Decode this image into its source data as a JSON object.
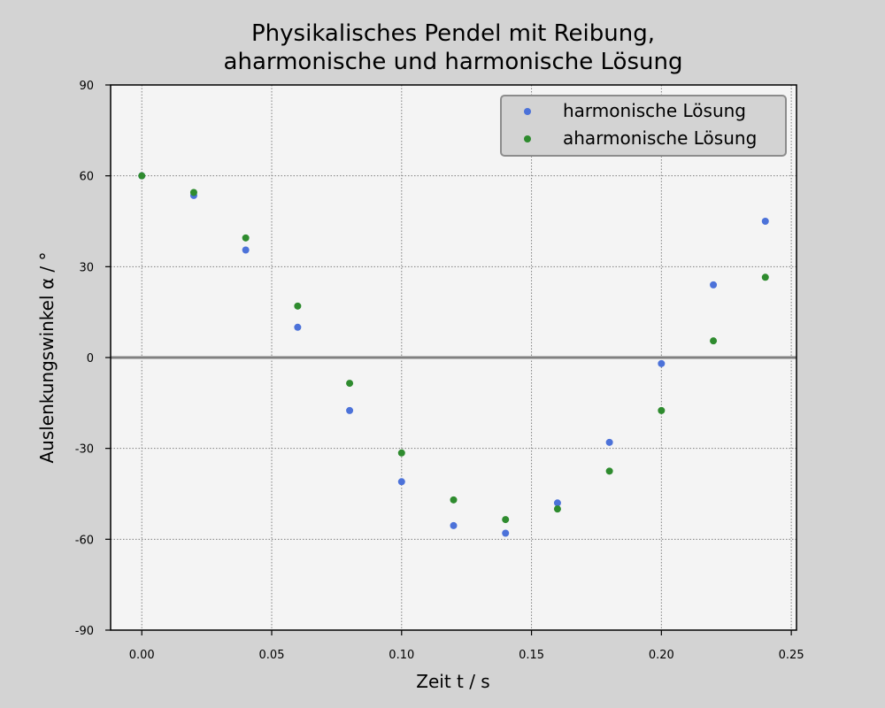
{
  "chart_data": {
    "type": "scatter",
    "title_line1": "Physikalisches Pendel mit Reibung,",
    "title_line2": "aharmonische und harmonische Lösung",
    "xlabel": "Zeit t / s",
    "ylabel": "Auslenkungswinkel α / °",
    "xlim": [
      -0.012,
      0.252
    ],
    "ylim": [
      -90,
      90
    ],
    "xticks": [
      0.0,
      0.05,
      0.1,
      0.15,
      0.2,
      0.25
    ],
    "xtick_labels": [
      "0.00",
      "0.05",
      "0.10",
      "0.15",
      "0.20",
      "0.25"
    ],
    "yticks": [
      -90,
      -60,
      -30,
      0,
      30,
      60,
      90
    ],
    "ytick_labels": [
      "-90",
      "-60",
      "-30",
      "0",
      "30",
      "60",
      "90"
    ],
    "grid": true,
    "zero_line": true,
    "legend_position": "top-right",
    "x": [
      0.0,
      0.02,
      0.04,
      0.06,
      0.08,
      0.1,
      0.12,
      0.14,
      0.16,
      0.18,
      0.2,
      0.22,
      0.24
    ],
    "series": [
      {
        "name": "harmonische Lösung",
        "color": "#4c72d9",
        "values": [
          60.0,
          53.5,
          35.5,
          10.0,
          -17.5,
          -41.0,
          -55.5,
          -58.0,
          -48.0,
          -28.0,
          -2.0,
          24.0,
          45.0
        ]
      },
      {
        "name": "aharmonische Lösung",
        "color": "#2e8b2e",
        "values": [
          60.0,
          54.5,
          39.5,
          17.0,
          -8.5,
          -31.5,
          -47.0,
          -53.5,
          -50.0,
          -37.5,
          -17.5,
          5.5,
          26.5
        ]
      }
    ],
    "colors": {
      "figure_bg": "#d3d3d3",
      "plot_bg": "#f4f4f4",
      "grid": "#808080",
      "zero_line": "#808080",
      "legend_bg": "#d3d3d3",
      "legend_border": "#8c8c8c"
    }
  }
}
